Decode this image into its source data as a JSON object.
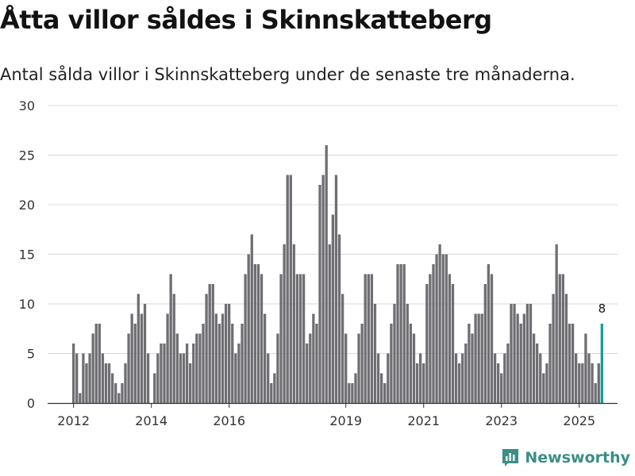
{
  "title": "Åtta villor såldes i Skinnskatteberg",
  "subtitle": "Antal sålda villor i Skinnskatteberg under de senaste tre månaderna.",
  "brand": "Newsworthy",
  "colors": {
    "bar": "#6e6e73",
    "highlight": "#139f96",
    "grid": "#d9d9d9",
    "axis": "#333333",
    "brand": "#3a8f87"
  },
  "chart_data": {
    "type": "bar",
    "title": "Åtta villor såldes i Skinnskatteberg",
    "xlabel": "",
    "ylabel": "",
    "ylim": [
      0,
      30
    ],
    "yticks": [
      0,
      5,
      10,
      15,
      20,
      25,
      30
    ],
    "x_start": "2012-01",
    "frequency": "monthly",
    "xticks": [
      {
        "label": "2012",
        "index": 0
      },
      {
        "label": "2014",
        "index": 24
      },
      {
        "label": "2016",
        "index": 48
      },
      {
        "label": "2019",
        "index": 84
      },
      {
        "label": "2021",
        "index": 108
      },
      {
        "label": "2023",
        "index": 132
      },
      {
        "label": "2025",
        "index": 156
      }
    ],
    "values": [
      6,
      5,
      1,
      5,
      4,
      5,
      7,
      8,
      8,
      5,
      4,
      4,
      3,
      2,
      1,
      2,
      4,
      7,
      9,
      8,
      11,
      9,
      10,
      5,
      0,
      3,
      5,
      6,
      6,
      9,
      13,
      11,
      7,
      5,
      5,
      6,
      4,
      6,
      7,
      7,
      8,
      11,
      12,
      12,
      9,
      8,
      9,
      10,
      10,
      8,
      5,
      6,
      8,
      13,
      15,
      17,
      14,
      14,
      13,
      9,
      5,
      2,
      3,
      7,
      13,
      16,
      23,
      23,
      16,
      13,
      13,
      13,
      6,
      7,
      9,
      8,
      22,
      23,
      26,
      16,
      19,
      23,
      17,
      11,
      7,
      2,
      2,
      3,
      7,
      8,
      13,
      13,
      13,
      10,
      5,
      3,
      2,
      5,
      8,
      10,
      14,
      14,
      14,
      10,
      8,
      7,
      4,
      5,
      4,
      12,
      13,
      14,
      15,
      16,
      15,
      15,
      13,
      12,
      5,
      4,
      5,
      6,
      8,
      7,
      9,
      9,
      9,
      12,
      14,
      13,
      5,
      4,
      3,
      5,
      6,
      10,
      10,
      9,
      8,
      9,
      10,
      10,
      7,
      6,
      5,
      3,
      4,
      8,
      11,
      16,
      13,
      13,
      11,
      8,
      8,
      5,
      4,
      4,
      7,
      5,
      4,
      2,
      4,
      8
    ],
    "highlight_last": true,
    "annotations": [
      {
        "label": "8",
        "target": "last"
      }
    ]
  }
}
